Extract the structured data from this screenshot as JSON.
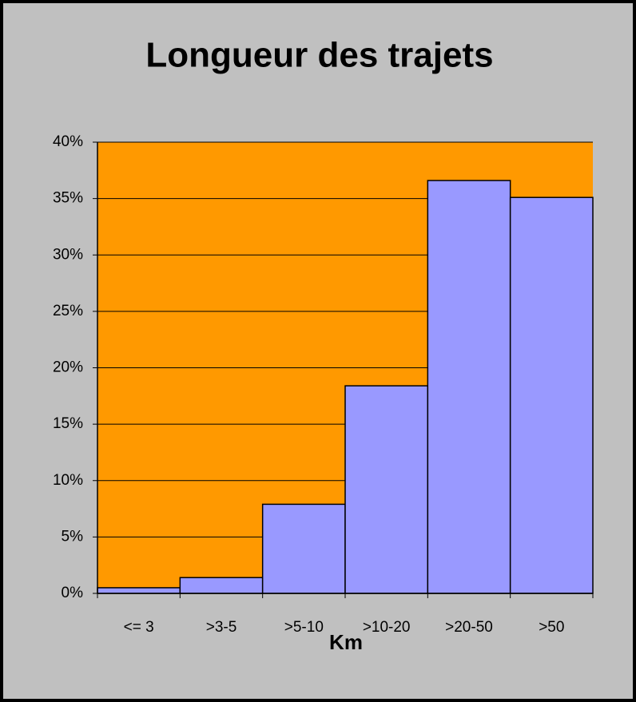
{
  "chart_data": {
    "type": "bar",
    "title": "Longueur des trajets",
    "x_label": "Km",
    "categories": [
      "<= 3",
      ">3-5",
      ">5-10",
      ">10-20",
      ">20-50",
      ">50"
    ],
    "values": [
      0.5,
      1.4,
      7.9,
      18.4,
      36.6,
      35.1
    ],
    "color": "#9999ff",
    "plot_color": "#ff9900",
    "background": "#c0c0c0",
    "ylim": [
      0,
      40
    ],
    "yticks": [
      {
        "value": 0,
        "label": "0%"
      },
      {
        "value": 5,
        "label": "5%"
      },
      {
        "value": 10,
        "label": "10%"
      },
      {
        "value": 15,
        "label": "15%"
      },
      {
        "value": 20,
        "label": "20%"
      },
      {
        "value": 25,
        "label": "25%"
      },
      {
        "value": 30,
        "label": "30%"
      },
      {
        "value": 35,
        "label": "35%"
      },
      {
        "value": 40,
        "label": "40%"
      }
    ],
    "grid": true
  }
}
